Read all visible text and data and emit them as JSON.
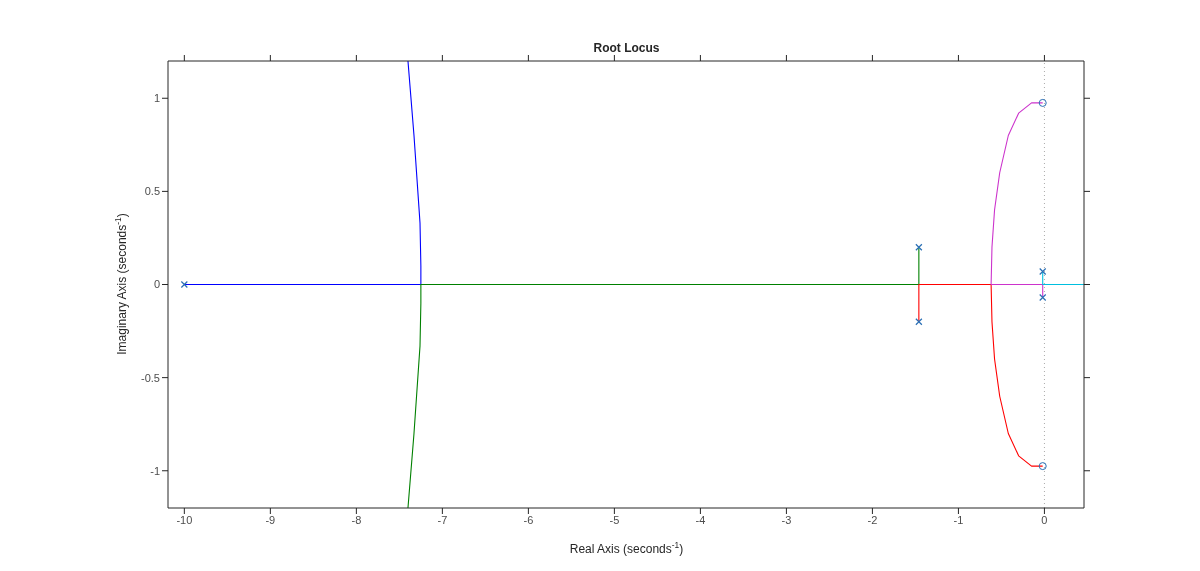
{
  "chart_data": {
    "type": "line",
    "title": "Root Locus",
    "xlabel": "Real Axis (seconds$^{-1}$)",
    "ylabel": "Imaginary Axis (seconds$^{-1}$)",
    "xlim": [
      -10.19,
      0.46
    ],
    "ylim": [
      -1.2,
      1.2
    ],
    "xticks": [
      -10,
      -9,
      -8,
      -7,
      -6,
      -5,
      -4,
      -3,
      -2,
      -1,
      0
    ],
    "yticks": [
      -1,
      -0.5,
      0,
      0.5,
      1
    ],
    "marker": "none",
    "ref_lines": [
      {
        "axis": "x",
        "value": 0,
        "color": "#aaaaaa",
        "line_style": "dotted"
      }
    ],
    "series": [
      {
        "color": "#0000ff",
        "x": [
          -10,
          -7.25,
          -7.25,
          -7.26,
          -7.33,
          -7.4
        ],
        "values": [
          0,
          0,
          0.1,
          0.33,
          0.8,
          1.2
        ]
      },
      {
        "color": "#008000",
        "x": [
          -1.46,
          -1.46,
          -7.25,
          -7.25,
          -7.26,
          -7.33,
          -7.4
        ],
        "values": [
          0.2,
          0,
          0,
          -0.1,
          -0.33,
          -0.8,
          -1.2
        ]
      },
      {
        "color": "#ff0000",
        "x": [
          -1.46,
          -1.46,
          -0.62,
          -0.61,
          -0.58,
          -0.52,
          -0.42,
          -0.3,
          -0.15,
          -0.02
        ],
        "values": [
          -0.2,
          0,
          0,
          -0.2,
          -0.4,
          -0.6,
          -0.8,
          -0.92,
          -0.975,
          -0.975
        ]
      },
      {
        "color": "#cc33cc",
        "x": [
          -0.02,
          -0.02,
          -0.62,
          -0.61,
          -0.58,
          -0.52,
          -0.42,
          -0.3,
          -0.15,
          -0.02
        ],
        "values": [
          -0.07,
          0,
          0,
          0.2,
          0.4,
          0.6,
          0.8,
          0.92,
          0.975,
          0.975
        ]
      },
      {
        "color": "#00bfdf",
        "x": [
          -0.02,
          -0.02,
          0.46
        ],
        "values": [
          0.07,
          0,
          0
        ]
      },
      {
        "type": "scatter",
        "marker": "cross",
        "color": "#2a6fb5",
        "x": [
          -10,
          -1.46,
          -1.46,
          -0.02,
          -0.02
        ],
        "values": [
          0,
          0.2,
          -0.2,
          0.07,
          -0.07
        ]
      },
      {
        "type": "scatter",
        "marker": "circle",
        "color": "#2a6fb5",
        "x": [
          -0.02,
          -0.02
        ],
        "values": [
          0.975,
          -0.975
        ]
      }
    ]
  }
}
